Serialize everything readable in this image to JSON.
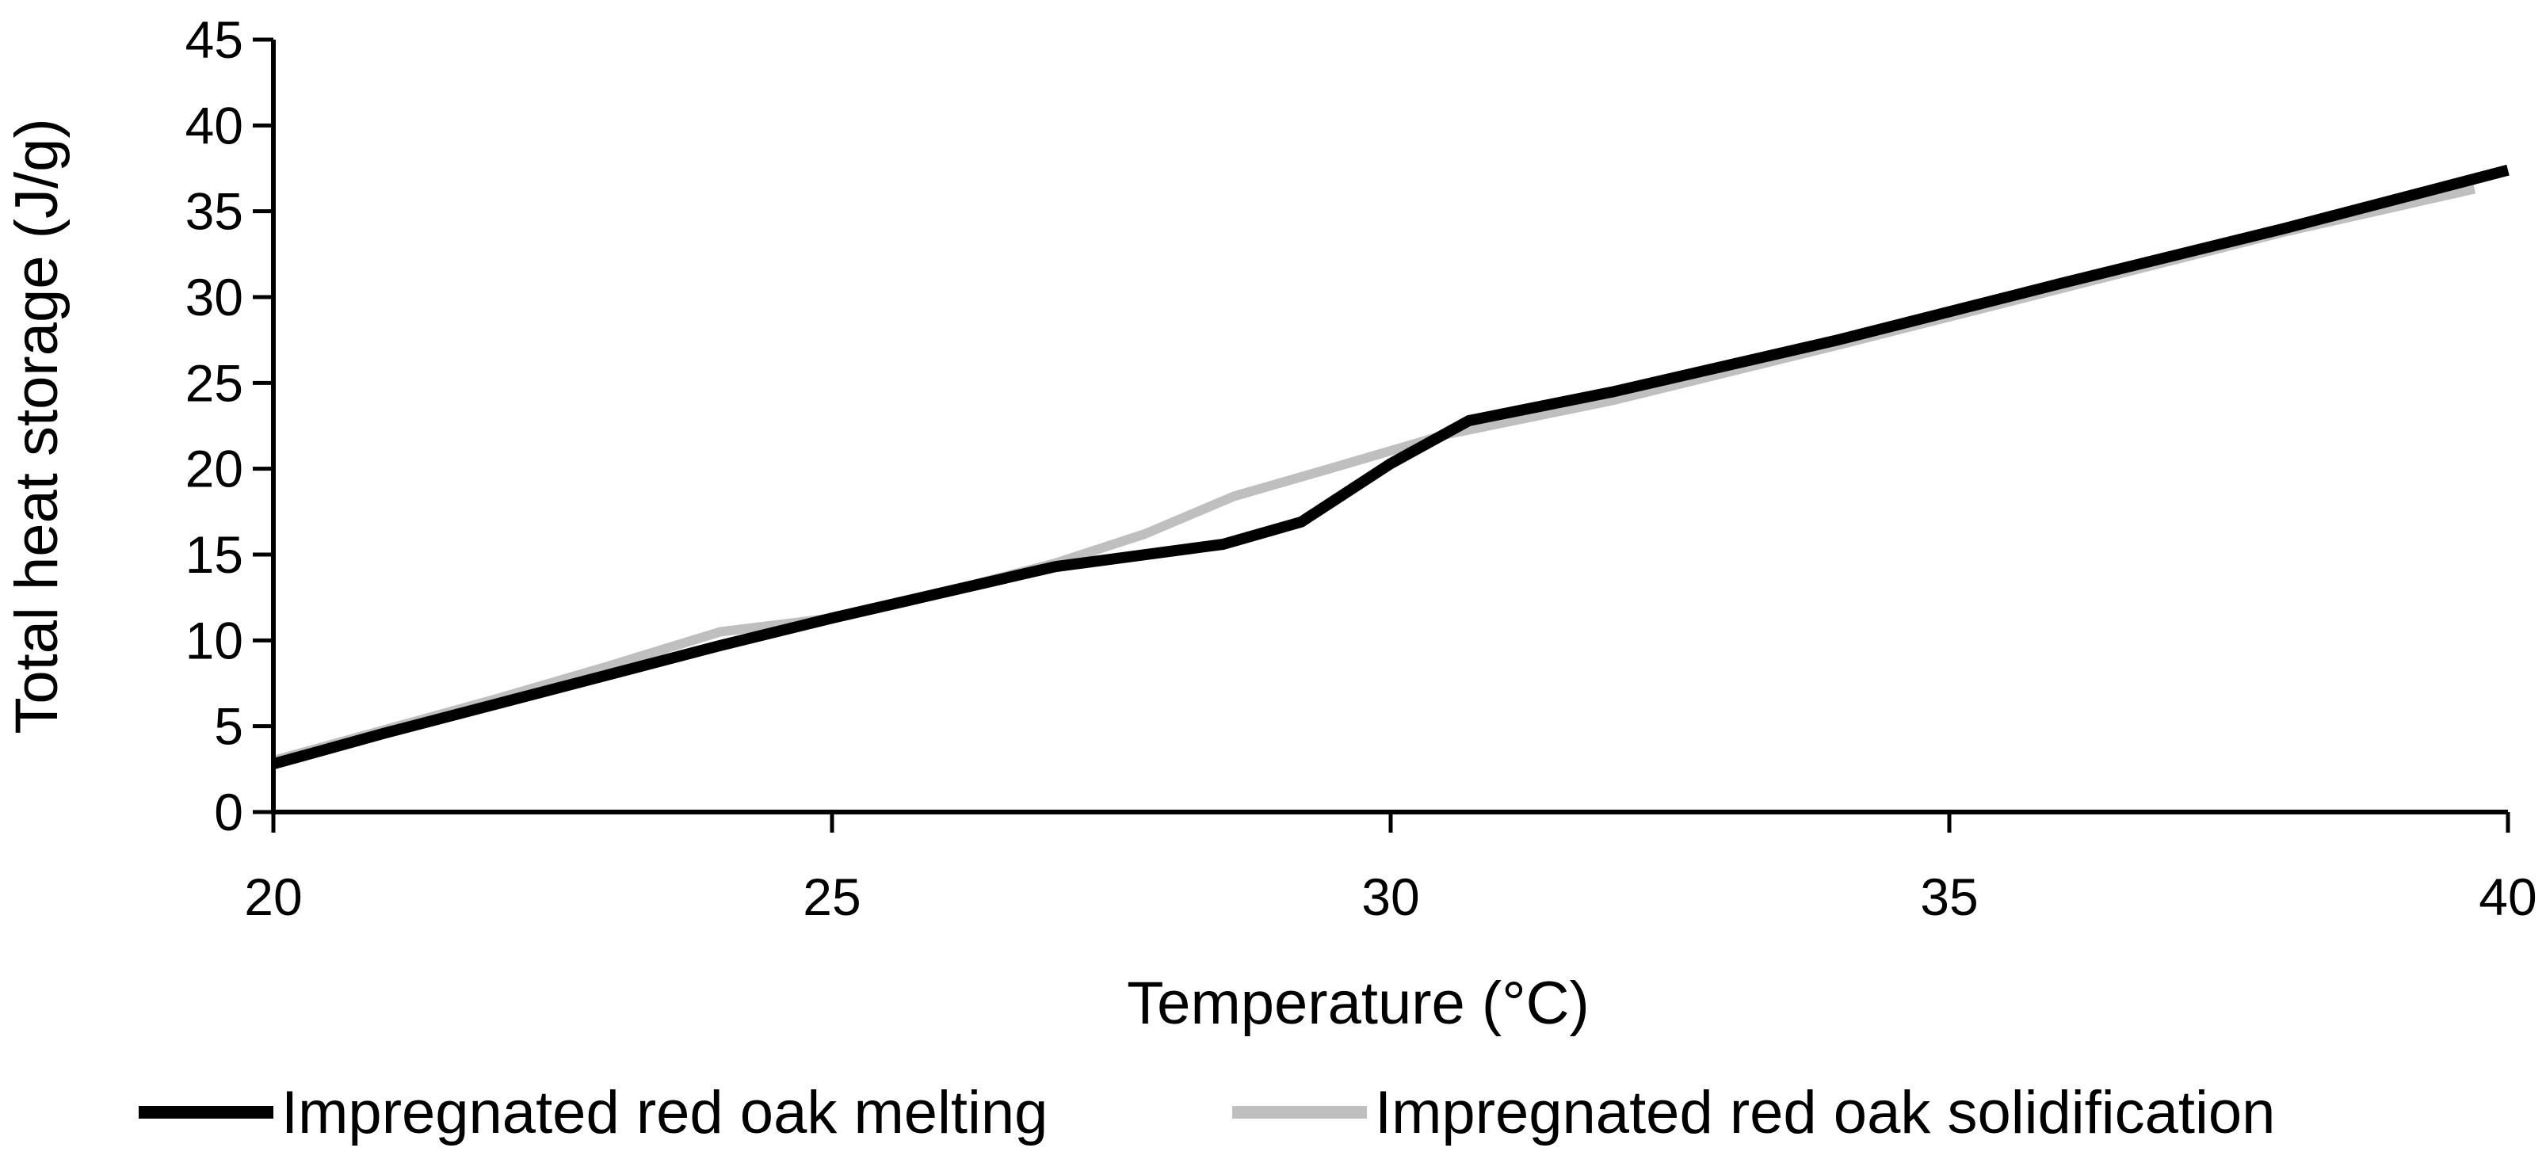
{
  "chart_data": {
    "type": "line",
    "title": "",
    "xlabel": "Temperature (°C)",
    "ylabel": "Total heat storage (J/g)",
    "xlim": [
      20,
      40
    ],
    "ylim": [
      0,
      45
    ],
    "xticks": [
      "20",
      "25",
      "30",
      "35",
      "40"
    ],
    "yticks": [
      "0",
      "5",
      "10",
      "15",
      "20",
      "25",
      "30",
      "35",
      "40",
      "45"
    ],
    "grid": false,
    "legend_position": "bottom",
    "series": [
      {
        "name": "Impregnated red oak melting",
        "color": "#000000",
        "x": [
          20.0,
          21.0,
          22.0,
          23.0,
          24.0,
          25.0,
          26.0,
          27.0,
          28.5,
          29.2,
          30.0,
          30.7,
          32.0,
          34.0,
          36.0,
          38.0,
          40.0
        ],
        "y": [
          2.8,
          4.6,
          6.3,
          8.0,
          9.7,
          11.3,
          12.8,
          14.3,
          15.6,
          16.9,
          20.3,
          22.8,
          24.5,
          27.5,
          30.8,
          34.0,
          37.4
        ]
      },
      {
        "name": "Impregnated red oak solidification",
        "color": "#bfbfbf",
        "x": [
          20.0,
          21.0,
          22.0,
          23.0,
          24.0,
          25.0,
          26.0,
          27.0,
          27.8,
          28.6,
          29.4,
          30.5,
          32.0,
          34.0,
          36.0,
          38.0,
          39.7
        ],
        "y": [
          3.0,
          4.8,
          6.6,
          8.5,
          10.5,
          11.3,
          12.8,
          14.5,
          16.2,
          18.4,
          19.9,
          22.0,
          24.0,
          27.2,
          30.5,
          33.8,
          36.3
        ]
      }
    ]
  }
}
